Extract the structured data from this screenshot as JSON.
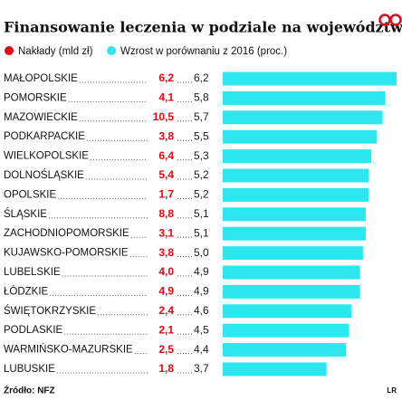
{
  "chart_data": {
    "type": "bar",
    "title": "Finansowanie leczenia w podziale na województwa",
    "categories": [
      "MAŁOPOLSKIE",
      "POMORSKIE",
      "MAZOWIECKIE",
      "PODKARPACKIE",
      "WIELKOPOLSKIE",
      "DOLNOŚLĄSKIE",
      "OPOLSKIE",
      "ŚLĄSKIE",
      "ZACHODNIOPOMORSKIE",
      "KUJAWSKO-POMORSKIE",
      "LUBELSKIE",
      "ŁÓDZKIE",
      "ŚWIĘTOKRZYSKIE",
      "PODLASKIE",
      "WARMIŃSKO-MAZURSKIE",
      "LUBUSKIE"
    ],
    "series": [
      {
        "name": "Nakłady (mld zł)",
        "color": "#e30613",
        "values": [
          6.2,
          4.1,
          10.5,
          3.8,
          6.4,
          5.4,
          1.7,
          8.8,
          3.1,
          3.8,
          4.0,
          4.9,
          2.4,
          2.1,
          2.5,
          1.8
        ],
        "value_labels": [
          "6,2",
          "4,1",
          "10,5",
          "3,8",
          "6,4",
          "5,4",
          "1,7",
          "8,8",
          "3,1",
          "3,8",
          "4,0",
          "4,9",
          "2,4",
          "2,1",
          "2,5",
          "1,8"
        ]
      },
      {
        "name": "Wzrost w porównaniu z 2016 (proc.)",
        "color": "#2ee6ee",
        "values": [
          6.2,
          5.8,
          5.7,
          5.5,
          5.3,
          5.2,
          5.2,
          5.1,
          5.1,
          5.0,
          4.9,
          4.9,
          4.6,
          4.5,
          4.4,
          3.7
        ],
        "value_labels": [
          "6,2",
          "5,8",
          "5,7",
          "5,5",
          "5,3",
          "5,2",
          "5,2",
          "5,1",
          "5,1",
          "5,0",
          "4,9",
          "4,9",
          "4,6",
          "4,5",
          "4,4",
          "3,7"
        ]
      }
    ],
    "source": "Źródło: NFZ",
    "credit": "LR"
  }
}
